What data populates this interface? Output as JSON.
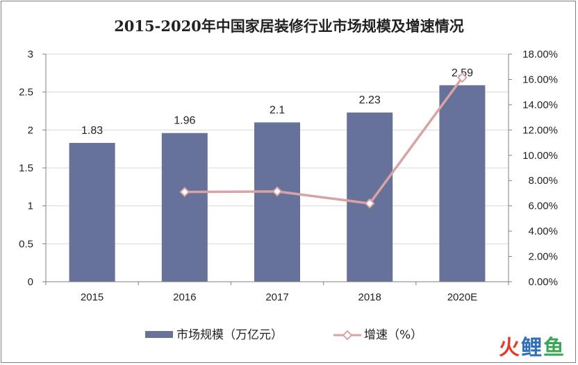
{
  "chart_data": {
    "type": "bar",
    "title": "2015-2020年中国家居装修行业市场规模及增速情况",
    "categories": [
      "2015",
      "2016",
      "2017",
      "2018",
      "2020E"
    ],
    "series": [
      {
        "name": "市场规模（万亿元）",
        "type": "bar",
        "axis": "left",
        "values": [
          1.83,
          1.96,
          2.1,
          2.23,
          2.59
        ],
        "data_labels": [
          "1.83",
          "1.96",
          "2.1",
          "2.23",
          "2.59"
        ],
        "color": "#67729b"
      },
      {
        "name": "增速（%）",
        "type": "line",
        "axis": "right",
        "values": [
          null,
          7.1,
          7.14,
          6.19,
          16.14
        ],
        "color": "#d9a3a5"
      }
    ],
    "y_left": {
      "min": 0,
      "max": 3,
      "ticks": [
        "0",
        "0.5",
        "1",
        "1.5",
        "2",
        "2.5",
        "3"
      ]
    },
    "y_right": {
      "min": 0,
      "max": 18,
      "ticks": [
        "0.00%",
        "2.00%",
        "4.00%",
        "6.00%",
        "8.00%",
        "10.00%",
        "12.00%",
        "14.00%",
        "16.00%",
        "18.00%"
      ]
    },
    "grid": true,
    "legend_position": "bottom"
  },
  "watermark": {
    "a": "火",
    "b": "鲤",
    "c": "鱼"
  }
}
